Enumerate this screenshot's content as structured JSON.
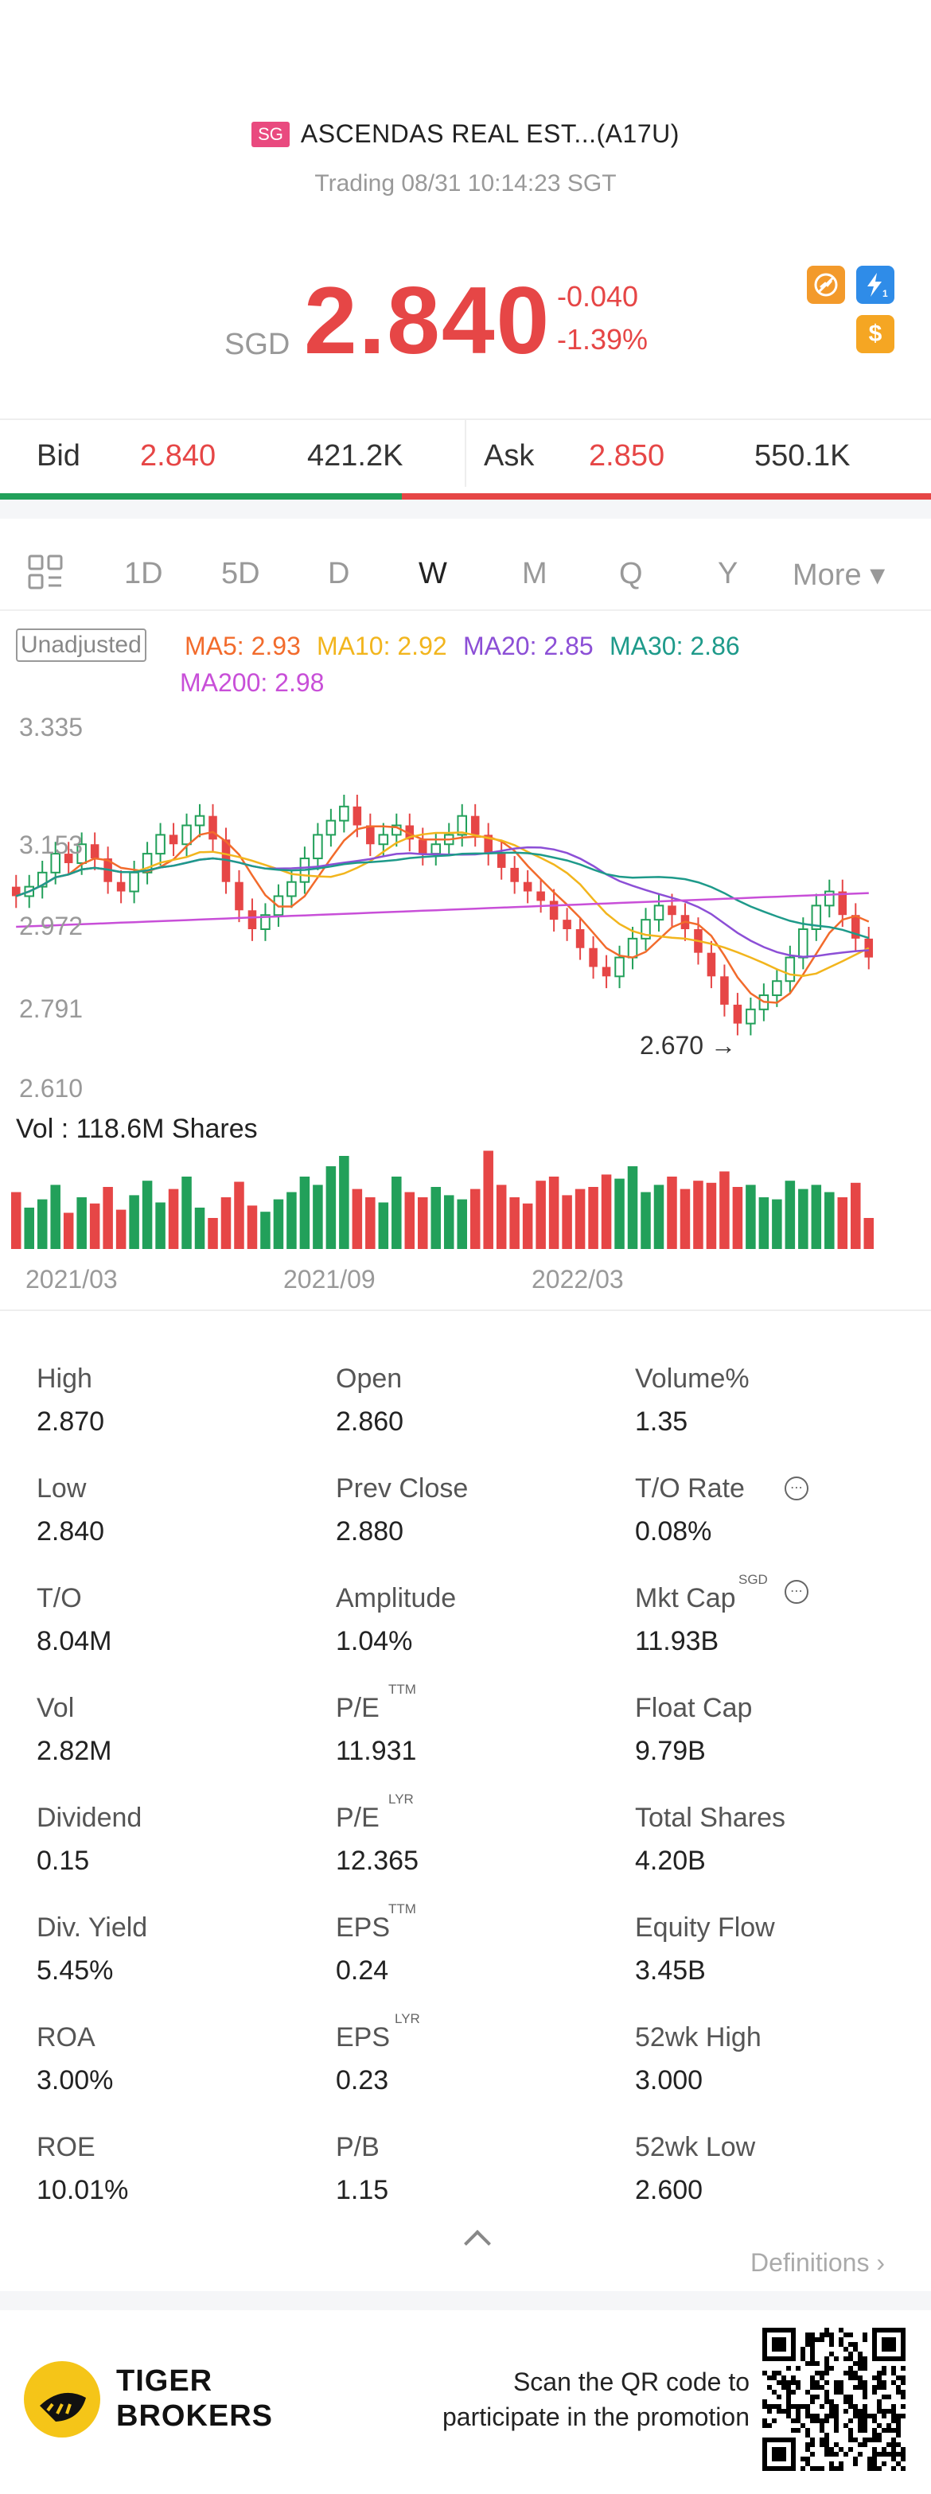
{
  "header": {
    "market_badge": "SG",
    "title": "ASCENDAS REAL EST...(A17U)",
    "trading_status": "Trading 08/31 10:14:23 SGT",
    "currency": "SGD",
    "price": "2.840",
    "change": "-0.040",
    "change_pct": "-1.39%",
    "icon_colors": {
      "down": "#e64646",
      "up": "#22a05a"
    }
  },
  "bidask": {
    "bid_label": "Bid",
    "bid_price": "2.840",
    "bid_size": "421.2K",
    "ask_label": "Ask",
    "ask_price": "2.850",
    "ask_size": "550.1K"
  },
  "tabs": [
    "1D",
    "5D",
    "D",
    "W",
    "M",
    "Q",
    "Y"
  ],
  "tab_active": "W",
  "tab_more": "More ▾",
  "chart": {
    "adjust_label": "Unadjusted",
    "ma": [
      {
        "label": "MA5: 2.93",
        "color": "#f26b2c"
      },
      {
        "label": "MA10: 2.92",
        "color": "#f2b51d"
      },
      {
        "label": "MA20: 2.85",
        "color": "#8c4fd6"
      },
      {
        "label": "MA30: 2.86",
        "color": "#1e9a8a"
      },
      {
        "label": "MA200: 2.98",
        "color": "#c84fd8"
      }
    ],
    "y_ticks": [
      "3.335",
      "3.153",
      "2.972",
      "2.791",
      "2.610"
    ],
    "low_marker": "2.670",
    "vol_label": "Vol  : 118.6M Shares",
    "x_ticks": [
      "2021/03",
      "2021/09",
      "2022/03"
    ]
  },
  "chart_data": {
    "type": "candlestick",
    "interval": "weekly",
    "ylim": [
      2.61,
      3.335
    ],
    "closes": [
      2.97,
      2.99,
      3.02,
      3.06,
      3.04,
      3.08,
      3.05,
      3.0,
      2.98,
      3.02,
      3.06,
      3.1,
      3.08,
      3.12,
      3.14,
      3.09,
      3.0,
      2.94,
      2.9,
      2.93,
      2.97,
      3.0,
      3.05,
      3.1,
      3.13,
      3.16,
      3.12,
      3.08,
      3.1,
      3.12,
      3.09,
      3.06,
      3.08,
      3.1,
      3.14,
      3.1,
      3.06,
      3.03,
      3.0,
      2.98,
      2.96,
      2.92,
      2.9,
      2.86,
      2.82,
      2.8,
      2.84,
      2.88,
      2.92,
      2.95,
      2.93,
      2.9,
      2.85,
      2.8,
      2.74,
      2.7,
      2.73,
      2.76,
      2.79,
      2.84,
      2.9,
      2.95,
      2.98,
      2.93,
      2.88,
      2.84
    ],
    "volumes": [
      55,
      40,
      48,
      62,
      35,
      50,
      44,
      60,
      38,
      52,
      66,
      45,
      58,
      70,
      40,
      30,
      50,
      65,
      42,
      36,
      48,
      55,
      70,
      62,
      80,
      90,
      58,
      50,
      45,
      70,
      55,
      50,
      60,
      52,
      48,
      58,
      95,
      62,
      50,
      44,
      66,
      70,
      52,
      58,
      60,
      72,
      68,
      80,
      55,
      62,
      70,
      58,
      66,
      64,
      75,
      60,
      62,
      50,
      48,
      66,
      58,
      62,
      55,
      50,
      64,
      30
    ],
    "volume_label": "118.6M Shares",
    "x_ticks": [
      "2021/03",
      "2021/09",
      "2022/03"
    ],
    "annotations": [
      "2.670"
    ]
  },
  "stats": [
    [
      {
        "label": "High",
        "value": "2.870"
      },
      {
        "label": "Open",
        "value": "2.860"
      },
      {
        "label": "Volume%",
        "value": "1.35"
      }
    ],
    [
      {
        "label": "Low",
        "value": "2.840"
      },
      {
        "label": "Prev Close",
        "value": "2.880"
      },
      {
        "label": "T/O Rate",
        "value": "0.08%"
      }
    ],
    [
      {
        "label": "T/O",
        "value": "8.04M"
      },
      {
        "label": "Amplitude",
        "value": "1.04%"
      },
      {
        "label": "Mkt Cap",
        "value": "11.93B"
      }
    ],
    [
      {
        "label": "Vol",
        "value": "2.82M"
      },
      {
        "label": "P/E",
        "value": "11.931"
      },
      {
        "label": "Float Cap",
        "value": "9.79B"
      }
    ],
    [
      {
        "label": "Dividend",
        "value": "0.15"
      },
      {
        "label": "P/E",
        "value": "12.365"
      },
      {
        "label": "Total Shares",
        "value": "4.20B"
      }
    ],
    [
      {
        "label": "Div. Yield",
        "value": "5.45%"
      },
      {
        "label": "EPS",
        "value": "0.24"
      },
      {
        "label": "Equity Flow",
        "value": "3.45B"
      }
    ],
    [
      {
        "label": "ROA",
        "value": "3.00%"
      },
      {
        "label": "EPS",
        "value": "0.23"
      },
      {
        "label": "52wk High",
        "value": "3.000"
      }
    ],
    [
      {
        "label": "ROE",
        "value": "10.01%"
      },
      {
        "label": "P/B",
        "value": "1.15"
      },
      {
        "label": "52wk Low",
        "value": "2.600"
      }
    ]
  ],
  "sups": {
    "ttm": "TTM",
    "lyr": "LYR",
    "sgd": "SGD"
  },
  "info_icon": "⋯",
  "definitions": "Definitions",
  "footer": {
    "brand_line1": "TIGER",
    "brand_line2": "BROKERS",
    "promo_line1": "Scan the QR code to",
    "promo_line2": "participate in the promotion"
  }
}
